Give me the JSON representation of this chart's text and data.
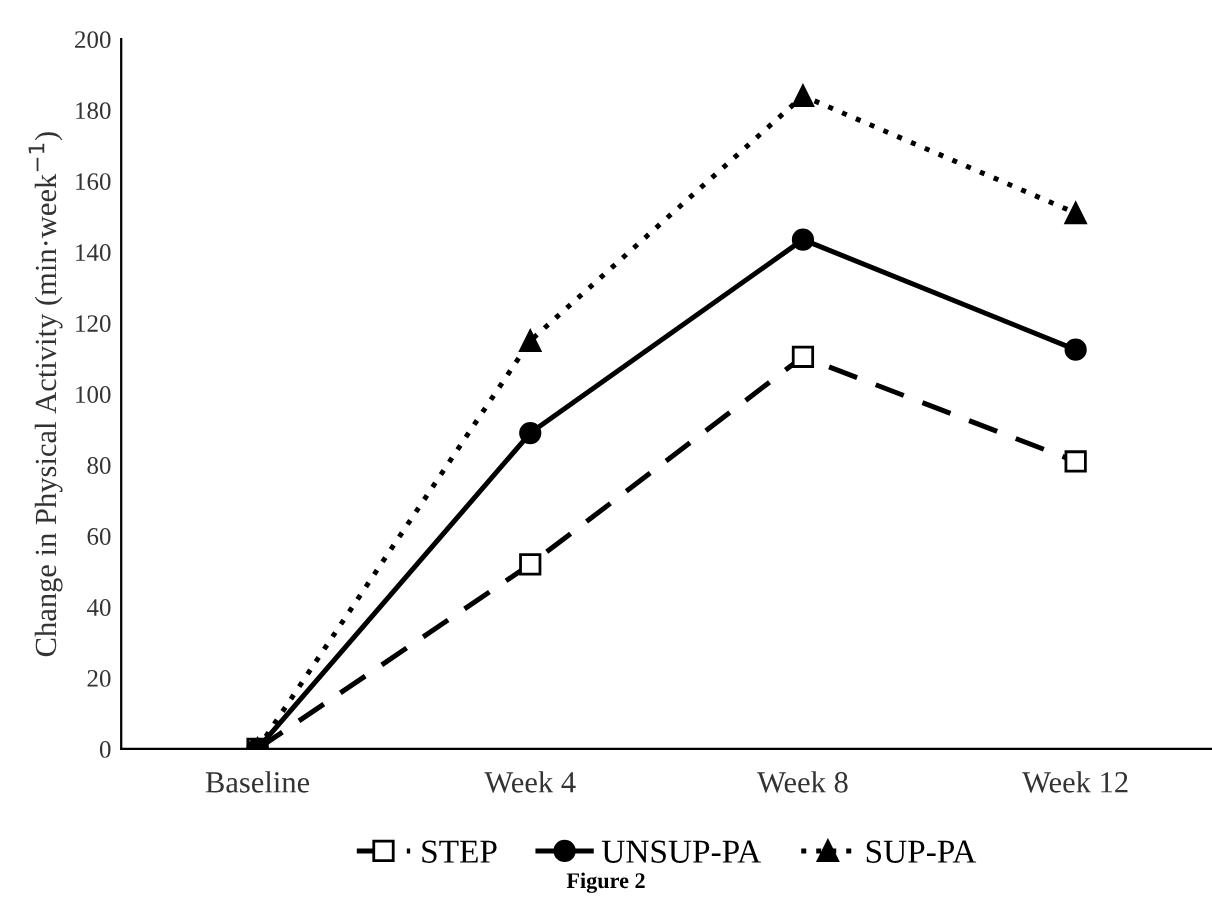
{
  "chart_data": {
    "type": "line",
    "ylabel": "Change in Physical Activity (min·week$^{−1}$)",
    "categories": [
      "Baseline",
      "Week 4",
      "Week 8",
      "Week 12"
    ],
    "series": [
      {
        "name": "STEP",
        "color": "#000000",
        "marker": "square",
        "line_style": "dashed",
        "values": [
          0,
          52,
          110.5,
          81
        ]
      },
      {
        "name": "UNSUP-PA",
        "color": "#000000",
        "marker": "circle",
        "line_style": "solid",
        "values": [
          0,
          89,
          143.5,
          112.5
        ]
      },
      {
        "name": "SUP-PA",
        "color": "#000000",
        "marker": "triangle",
        "line_style": "dotted",
        "values": [
          0,
          115,
          184,
          151
        ]
      }
    ],
    "ylim": [
      0,
      200
    ],
    "yticks": [
      0,
      20,
      40,
      60,
      80,
      100,
      120,
      140,
      160,
      180,
      200
    ],
    "grid": false,
    "legend": "bottom",
    "annotations": [
      "Figure 2"
    ]
  }
}
